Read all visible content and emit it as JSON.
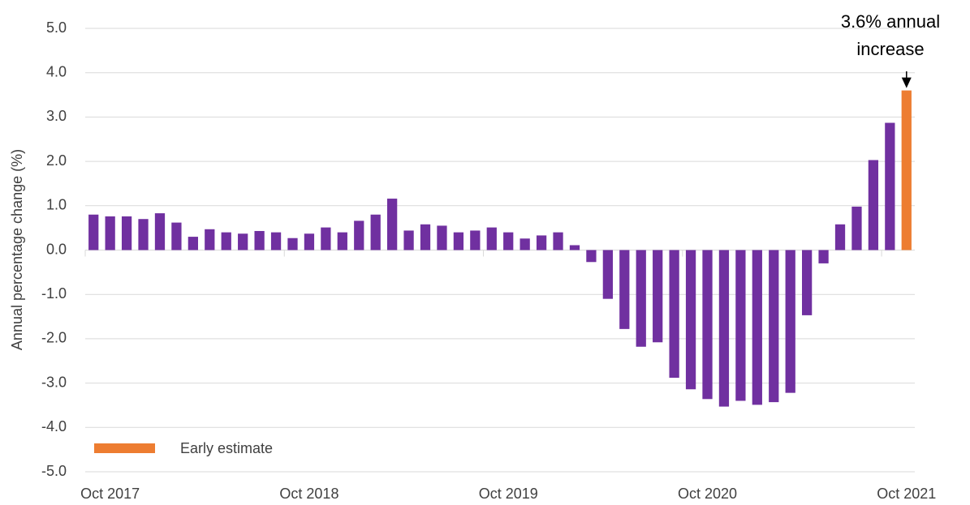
{
  "chart_data": {
    "type": "bar",
    "y_label": "Annual percentage change (%)",
    "categories": [
      null,
      "Oct 2017",
      null,
      null,
      null,
      null,
      null,
      null,
      null,
      null,
      null,
      null,
      null,
      "Oct 2018",
      null,
      null,
      null,
      null,
      null,
      null,
      null,
      null,
      null,
      null,
      null,
      "Oct 2019",
      null,
      null,
      null,
      null,
      null,
      null,
      null,
      null,
      null,
      null,
      null,
      "Oct 2020",
      null,
      null,
      null,
      null,
      null,
      null,
      null,
      null,
      null,
      null,
      null,
      "Oct 2021"
    ],
    "series": [
      {
        "color": "#7030a0",
        "values": [
          0.8,
          0.76,
          0.76,
          0.7,
          0.83,
          0.62,
          0.3,
          0.47,
          0.4,
          0.37,
          0.43,
          0.4,
          0.27,
          0.37,
          0.51,
          0.4,
          0.66,
          0.8,
          1.16,
          0.44,
          0.58,
          0.55,
          0.4,
          0.44,
          0.51,
          0.4,
          0.26,
          0.33,
          0.4,
          0.11,
          -0.27,
          -1.1,
          -1.78,
          -2.18,
          -2.08,
          -2.88,
          -3.14,
          -3.36,
          -3.53,
          -3.4,
          -3.49,
          -3.43,
          -3.22,
          -1.47,
          -0.3,
          0.58,
          0.98,
          2.03,
          2.87,
          null
        ]
      },
      {
        "name": "Early estimate",
        "color": "#ed7d31",
        "values": [
          null,
          null,
          null,
          null,
          null,
          null,
          null,
          null,
          null,
          null,
          null,
          null,
          null,
          null,
          null,
          null,
          null,
          null,
          null,
          null,
          null,
          null,
          null,
          null,
          null,
          null,
          null,
          null,
          null,
          null,
          null,
          null,
          null,
          null,
          null,
          null,
          null,
          null,
          null,
          null,
          null,
          null,
          null,
          null,
          null,
          null,
          null,
          null,
          null,
          3.6
        ]
      }
    ],
    "annotation": [
      "3.6% annual",
      "increase"
    ],
    "ylim": [
      -5,
      5
    ],
    "yticks": [
      {
        "value": -5,
        "label": "-5.0"
      },
      {
        "value": -4,
        "label": "-4.0"
      },
      {
        "value": -3,
        "label": "-3.0"
      },
      {
        "value": -2,
        "label": "-2.0"
      },
      {
        "value": -1,
        "label": "-1.0"
      },
      {
        "value": 0,
        "label": "0.0"
      },
      {
        "value": 1,
        "label": "1.0"
      },
      {
        "value": 2,
        "label": "2.0"
      },
      {
        "value": 3,
        "label": "3.0"
      },
      {
        "value": 4,
        "label": "4.0"
      },
      {
        "value": 5,
        "label": "5.0"
      }
    ],
    "grid": true
  }
}
